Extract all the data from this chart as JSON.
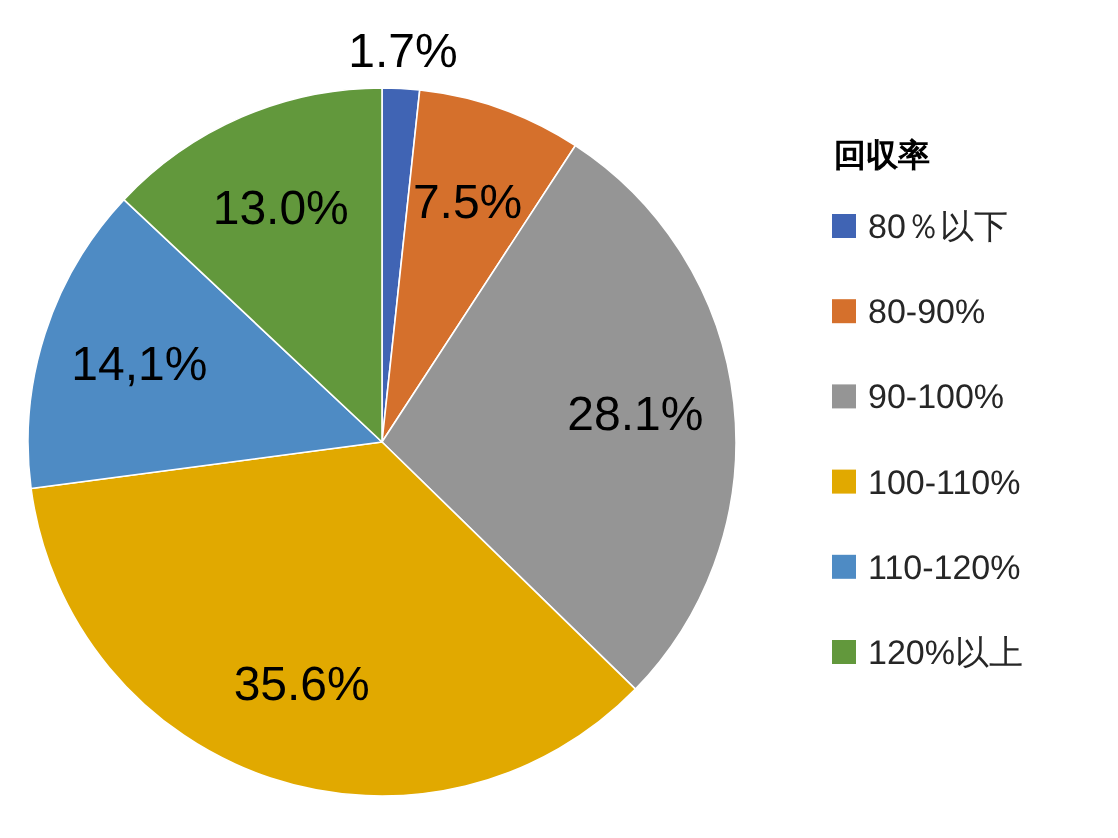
{
  "chart_data": {
    "type": "pie",
    "legend_title": "回収率",
    "categories": [
      "80％以下",
      "80-90%",
      "90-100%",
      "100-110%",
      "110-120%",
      "120%以上"
    ],
    "values": [
      1.7,
      7.5,
      28.1,
      35.6,
      14.1,
      13.0
    ],
    "colors": [
      "#4064b4",
      "#d5702c",
      "#959595",
      "#e1a900",
      "#4e8bc4",
      "#62983c"
    ],
    "value_labels": [
      "1.7%",
      "7.5%",
      "28.1%",
      "35.6%",
      "14,1%",
      "13.0%"
    ],
    "legend": "right"
  }
}
